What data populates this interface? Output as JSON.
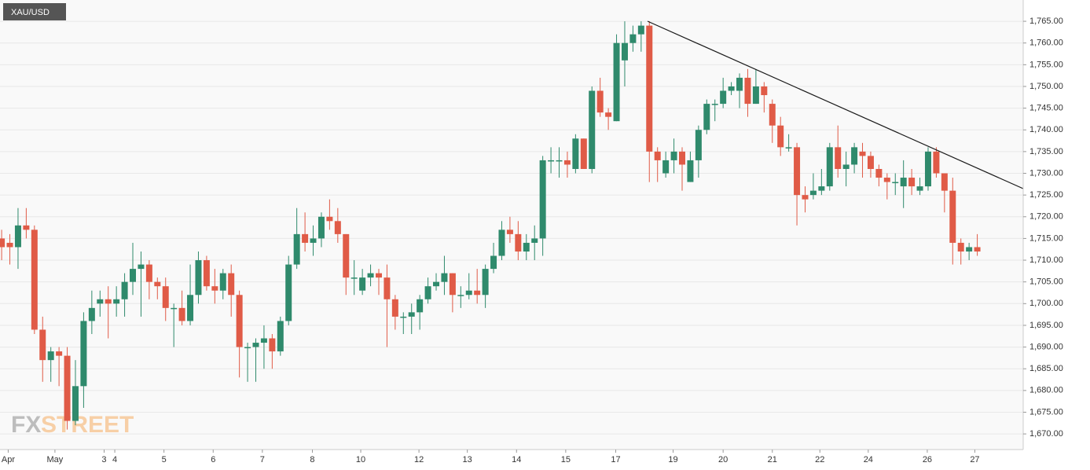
{
  "chart_data": {
    "type": "candlestick",
    "title": "XAU/USD",
    "watermark": [
      "FX",
      "STREET"
    ],
    "up_color": "#2f8a6c",
    "down_color": "#e05b47",
    "grid": true,
    "categories": [
      null,
      null,
      null,
      null,
      null,
      null,
      null,
      null,
      null,
      null,
      null,
      null,
      null,
      null,
      null,
      null,
      null,
      null,
      null,
      null,
      null,
      null,
      null,
      null,
      null,
      null,
      null,
      null,
      null,
      null,
      null,
      null,
      null,
      null,
      null,
      null,
      null,
      null,
      null,
      null,
      null,
      null,
      null,
      null,
      null,
      null,
      null,
      null,
      null,
      null,
      null,
      null,
      null,
      null,
      null,
      null,
      null,
      null,
      null,
      null,
      null,
      null,
      null,
      null,
      null,
      null,
      null,
      null,
      null,
      null,
      null,
      null,
      null,
      null,
      null,
      null,
      null,
      null,
      null,
      null,
      null,
      null,
      null,
      null,
      null,
      null,
      null,
      null,
      null,
      null,
      null,
      null,
      null,
      null,
      null,
      null,
      null,
      null,
      null,
      null,
      null,
      null,
      null,
      null,
      null,
      null,
      null,
      null,
      null,
      null,
      null,
      null,
      null,
      null,
      null,
      null,
      null,
      null,
      null,
      null
    ],
    "open": [
      1715,
      1714,
      1713,
      1718,
      1717,
      1694,
      1687,
      1689,
      1688,
      1673,
      1681,
      1696,
      1700,
      1701,
      1700,
      1701,
      1705,
      1708,
      1709,
      1705,
      1704,
      1699,
      1699,
      1696,
      1702,
      1710,
      1704,
      1703,
      1707,
      1702,
      1690,
      1690,
      1691,
      1692,
      1689,
      1696,
      1709,
      1716,
      1714,
      1715,
      1720,
      1719,
      1716,
      1706,
      1703,
      1706,
      1707,
      1706,
      1701,
      1697,
      1697,
      1698,
      1701,
      1704,
      1705,
      1707,
      1702,
      1702,
      1703,
      1702,
      1708,
      1711,
      1717,
      1716,
      1712,
      1714,
      1715,
      1733,
      1733,
      1733,
      1731,
      1738,
      1731,
      1749,
      1744,
      1742,
      1756,
      1760,
      1762,
      1764,
      1735,
      1730,
      1733,
      1735,
      1728,
      1733,
      1740,
      1746,
      1746,
      1749,
      1749,
      1752,
      1746,
      1750,
      1746,
      1741,
      1736,
      1736,
      1725,
      1725,
      1726,
      1727,
      1736,
      1731,
      1732,
      1735,
      1734,
      1731,
      1729,
      1728,
      1727,
      1729,
      1726,
      1727,
      1735,
      1730,
      1726,
      1714,
      1712,
      1713
    ],
    "high": [
      1717,
      1716,
      1722,
      1722,
      1718,
      1697,
      1690,
      1690,
      1690,
      1687,
      1698,
      1703,
      1703,
      1704,
      1704,
      1707,
      1714,
      1712,
      1710,
      1706,
      1706,
      1700,
      1703,
      1709,
      1712,
      1711,
      1708,
      1708,
      1709,
      1703,
      1691,
      1692,
      1695,
      1693,
      1697,
      1711,
      1722,
      1721,
      1718,
      1721,
      1724,
      1722,
      1716,
      1710,
      1708,
      1709,
      1708,
      1709,
      1702,
      1698,
      1700,
      1702,
      1706,
      1707,
      1711,
      1707,
      1704,
      1707,
      1708,
      1709,
      1714,
      1719,
      1720,
      1719,
      1716,
      1718,
      1734,
      1736,
      1736,
      1735,
      1739,
      1738,
      1750,
      1752,
      1745,
      1762,
      1765,
      1764,
      1765,
      1765,
      1736,
      1735,
      1738,
      1736,
      1735,
      1741,
      1747,
      1747,
      1752,
      1751,
      1753,
      1754,
      1754,
      1751,
      1747,
      1743,
      1739,
      1737,
      1727,
      1730,
      1731,
      1737,
      1741,
      1735,
      1737,
      1737,
      1735,
      1732,
      1730,
      1730,
      1733,
      1731,
      1729,
      1736,
      1736,
      1729,
      1729,
      1715,
      1714,
      1716
    ],
    "low": [
      1710,
      1709,
      1708,
      1715,
      1693,
      1682,
      1682,
      1681,
      1671,
      1672,
      1676,
      1693,
      1697,
      1692,
      1697,
      1697,
      1702,
      1697,
      1701,
      1701,
      1696,
      1690,
      1695,
      1695,
      1700,
      1703,
      1700,
      1701,
      1697,
      1683,
      1682,
      1682,
      1685,
      1685,
      1688,
      1695,
      1708,
      1712,
      1711,
      1713,
      1717,
      1714,
      1702,
      1702,
      1702,
      1704,
      1702,
      1690,
      1694,
      1693,
      1693,
      1694,
      1700,
      1703,
      1702,
      1698,
      1699,
      1701,
      1700,
      1699,
      1707,
      1710,
      1714,
      1710,
      1710,
      1710,
      1711,
      1730,
      1729,
      1729,
      1730,
      1731,
      1730,
      1743,
      1740,
      1742,
      1750,
      1758,
      1758,
      1728,
      1728,
      1729,
      1730,
      1726,
      1728,
      1729,
      1739,
      1742,
      1745,
      1748,
      1745,
      1743,
      1746,
      1744,
      1737,
      1734,
      1735,
      1718,
      1721,
      1724,
      1725,
      1726,
      1729,
      1727,
      1730,
      1729,
      1729,
      1727,
      1724,
      1725,
      1722,
      1725,
      1725,
      1726,
      1729,
      1721,
      1709,
      1709,
      1710,
      1711
    ],
    "close": [
      1713,
      1713,
      1718,
      1717,
      1694,
      1687,
      1689,
      1688,
      1673,
      1681,
      1696,
      1699,
      1701,
      1700,
      1701,
      1705,
      1708,
      1709,
      1705,
      1704,
      1699,
      1699,
      1696,
      1702,
      1710,
      1704,
      1703,
      1707,
      1702,
      1690,
      1690,
      1691,
      1692,
      1689,
      1696,
      1709,
      1716,
      1714,
      1715,
      1720,
      1719,
      1716,
      1706,
      1706,
      1706,
      1707,
      1706,
      1701,
      1697,
      1697,
      1698,
      1701,
      1704,
      1705,
      1707,
      1702,
      1702,
      1703,
      1702,
      1708,
      1711,
      1717,
      1716,
      1712,
      1714,
      1715,
      1733,
      1733,
      1733,
      1732,
      1738,
      1731,
      1749,
      1744,
      1743,
      1760,
      1760,
      1762,
      1764,
      1735,
      1733,
      1733,
      1735,
      1732,
      1733,
      1740,
      1746,
      1746,
      1749,
      1750,
      1752,
      1746,
      1750,
      1748,
      1741,
      1736,
      1736,
      1725,
      1724,
      1726,
      1727,
      1736,
      1731,
      1732,
      1736,
      1734,
      1731,
      1729,
      1728,
      1728,
      1729,
      1727,
      1727,
      1735,
      1730,
      1726,
      1714,
      1712,
      1713,
      1712
    ],
    "xlim": [
      -0.2,
      124.6
    ],
    "xticks": [
      {
        "value": 0.8,
        "label": "Apr"
      },
      {
        "value": 6.5,
        "label": "May"
      },
      {
        "value": 12.5,
        "label": "3"
      },
      {
        "value": 13.8,
        "label": "4"
      },
      {
        "value": 19.8,
        "label": "5"
      },
      {
        "value": 25.8,
        "label": "6"
      },
      {
        "value": 31.8,
        "label": "7"
      },
      {
        "value": 37.9,
        "label": "8"
      },
      {
        "value": 43.8,
        "label": "10"
      },
      {
        "value": 50.9,
        "label": "12"
      },
      {
        "value": 56.8,
        "label": "13"
      },
      {
        "value": 62.8,
        "label": "14"
      },
      {
        "value": 68.8,
        "label": "15"
      },
      {
        "value": 74.9,
        "label": "17"
      },
      {
        "value": 81.9,
        "label": "19"
      },
      {
        "value": 88.0,
        "label": "20"
      },
      {
        "value": 94.0,
        "label": "21"
      },
      {
        "value": 99.8,
        "label": "22"
      },
      {
        "value": 105.7,
        "label": "24"
      },
      {
        "value": 112.9,
        "label": "26"
      },
      {
        "value": 118.7,
        "label": "27"
      }
    ],
    "ylim": [
      1666.4,
      1769.9
    ],
    "yticks": [
      {
        "value": 1670,
        "label": "1,670.00"
      },
      {
        "value": 1675,
        "label": "1,675.00"
      },
      {
        "value": 1680,
        "label": "1,680.00"
      },
      {
        "value": 1685,
        "label": "1,685.00"
      },
      {
        "value": 1690,
        "label": "1,690.00"
      },
      {
        "value": 1695,
        "label": "1,695.00"
      },
      {
        "value": 1700,
        "label": "1,700.00"
      },
      {
        "value": 1705,
        "label": "1,705.00"
      },
      {
        "value": 1710,
        "label": "1,710.00"
      },
      {
        "value": 1715,
        "label": "1,715.00"
      },
      {
        "value": 1720,
        "label": "1,720.00"
      },
      {
        "value": 1725,
        "label": "1,725.00"
      },
      {
        "value": 1730,
        "label": "1,730.00"
      },
      {
        "value": 1735,
        "label": "1,735.00"
      },
      {
        "value": 1740,
        "label": "1,740.00"
      },
      {
        "value": 1745,
        "label": "1,745.00"
      },
      {
        "value": 1750,
        "label": "1,750.00"
      },
      {
        "value": 1755,
        "label": "1,755.00"
      },
      {
        "value": 1760,
        "label": "1,760.00"
      },
      {
        "value": 1765,
        "label": "1,765.00"
      }
    ]
  }
}
